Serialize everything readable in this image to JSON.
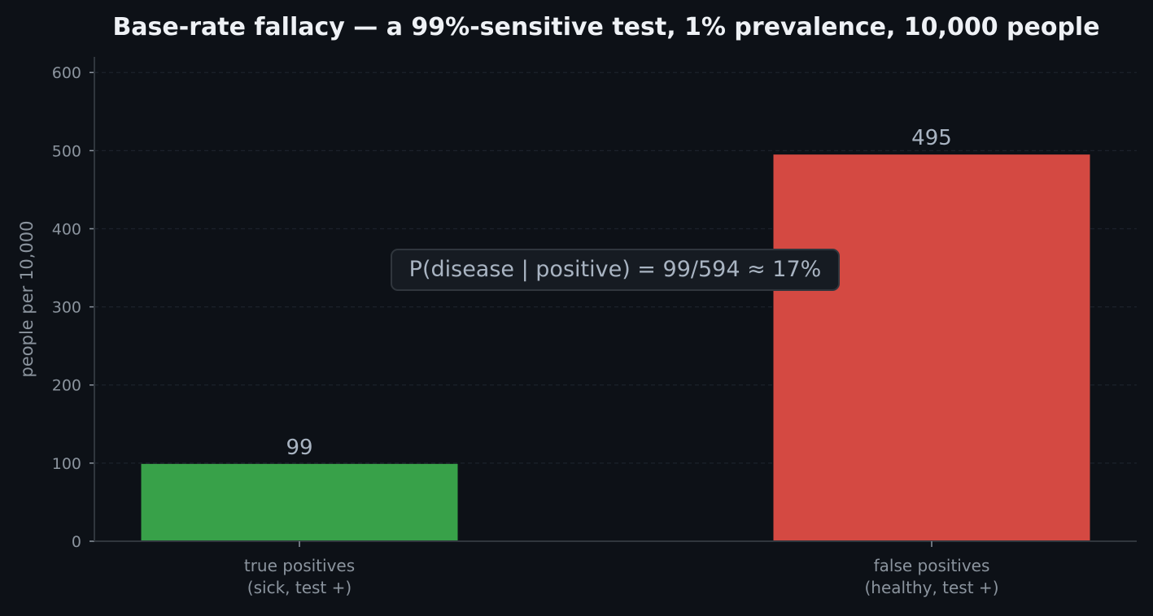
{
  "colors": {
    "background": "#0d1117",
    "title": "#eef1f5",
    "axis_text": "#8b949e",
    "value_label": "#a9b4c2",
    "axis_line": "#30363d",
    "grid": "#1c222b",
    "annotation_bg": "#161b22",
    "annotation_border": "#30363d",
    "annotation_text": "#a9b4c2"
  },
  "chart_data": {
    "type": "bar",
    "title": "Base-rate fallacy — a 99%-sensitive test, 1% prevalence, 10,000 people",
    "xlabel": "",
    "ylabel": "people per 10,000",
    "ylim": [
      0,
      620
    ],
    "yticks": [
      0,
      100,
      200,
      300,
      400,
      500,
      600
    ],
    "grid": true,
    "categories": [
      [
        "true positives",
        "(sick, test +)"
      ],
      [
        "false positives",
        "(healthy, test +)"
      ]
    ],
    "values": [
      99,
      495
    ],
    "bar_colors": [
      "#38a149",
      "#d44942"
    ],
    "data_labels": [
      "99",
      "495"
    ],
    "annotation": "P(disease | positive) = 99/594 ≈ 17%"
  }
}
